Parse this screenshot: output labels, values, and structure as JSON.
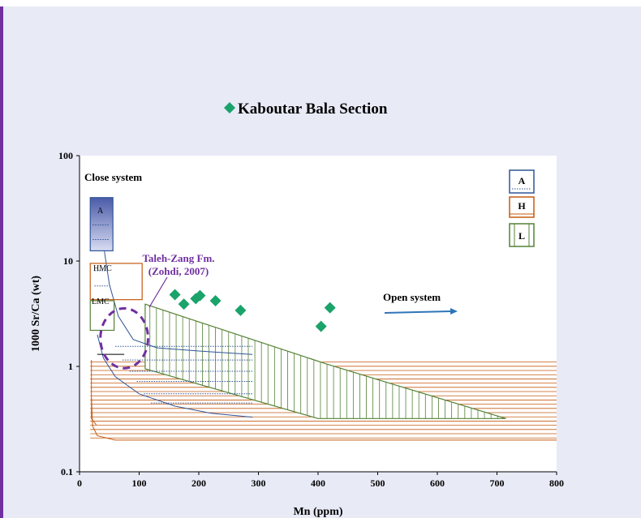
{
  "chart_data": {
    "type": "scatter",
    "title": "Kaboutar Bala Section",
    "xlabel": "Mn (ppm)",
    "ylabel": "1000 Sr/Ca (wt)",
    "xlim": [
      0,
      800
    ],
    "ylim": [
      0.1,
      100
    ],
    "yscale": "log",
    "x_ticks": [
      "0",
      "100",
      "200",
      "300",
      "400",
      "500",
      "600",
      "700",
      "800"
    ],
    "y_ticks": [
      "0.1",
      "1",
      "10",
      "100"
    ],
    "series": [
      {
        "name": "Kaboutar Bala Section",
        "marker": "diamond",
        "color": "#1aa36b",
        "points": [
          {
            "x": 160,
            "y": 4.8
          },
          {
            "x": 175,
            "y": 3.9
          },
          {
            "x": 195,
            "y": 4.4
          },
          {
            "x": 202,
            "y": 4.7
          },
          {
            "x": 228,
            "y": 4.2
          },
          {
            "x": 270,
            "y": 3.4
          },
          {
            "x": 405,
            "y": 2.4
          },
          {
            "x": 420,
            "y": 3.6
          }
        ]
      }
    ],
    "annotations": {
      "close_system": "Close system",
      "open_system": "Open system",
      "taleh_zang_line1": "Taleh-Zang Fm.",
      "taleh_zang_line2": "(Zohdi, 2007)",
      "label_a": "A",
      "label_hmc": "HMC",
      "label_lmc": "LMC"
    },
    "legend": {
      "position": "top-right",
      "entries": [
        {
          "label": "A",
          "pattern": "dotted-blue",
          "color": "#2f5597"
        },
        {
          "label": "H",
          "pattern": "horizontal-orange",
          "color": "#c55a11"
        },
        {
          "label": "L",
          "pattern": "vertical-green",
          "color": "#548235"
        }
      ]
    },
    "colors": {
      "aragonite": "#2f5597",
      "hmc": "#c55a11",
      "lmc": "#548235",
      "taleh_zang": "#7030a0",
      "arrow": "#2e75b6",
      "plot_background": "#ffffff"
    }
  }
}
